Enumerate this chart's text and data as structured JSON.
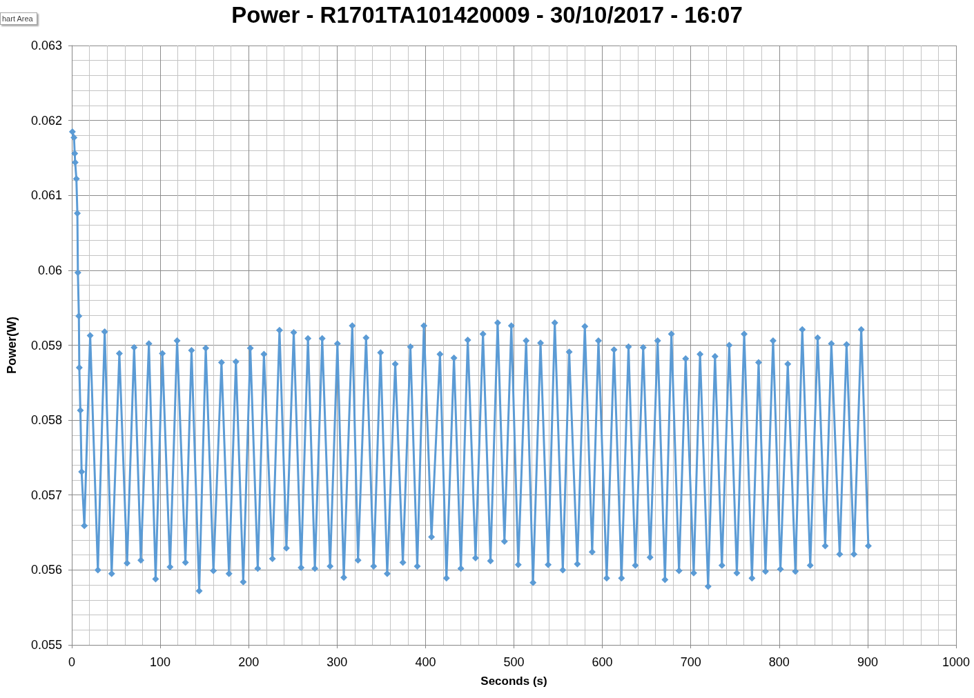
{
  "chart_data": {
    "type": "line",
    "title": "Power - R1701TA101420009 - 30/10/2017 - 16:07",
    "xlabel": "Seconds (s)",
    "ylabel": "Power(W)",
    "annotations": [
      "hart Area"
    ],
    "x": [
      0.7,
      2.5,
      3.3,
      3.8,
      5.2,
      6.3,
      6.9,
      8.0,
      8.5,
      9.7,
      11.1,
      14.2,
      20.8,
      29.5,
      37.2,
      45.1,
      53.8,
      62.5,
      70.5,
      78.1,
      87.2,
      94.8,
      102.4,
      111.1,
      119.1,
      128.5,
      135.4,
      144.1,
      151.5,
      160.2,
      169.3,
      177.8,
      185.6,
      193.9,
      201.9,
      210.3,
      217.3,
      226.9,
      234.9,
      242.7,
      251.0,
      259.3,
      267.1,
      274.9,
      283.2,
      292.1,
      300.4,
      307.6,
      317.2,
      323.7,
      332.8,
      341.4,
      349.2,
      356.7,
      365.8,
      374.4,
      382.9,
      390.7,
      398.2,
      406.8,
      416.4,
      423.7,
      432.2,
      440.0,
      447.8,
      456.6,
      465.0,
      473.5,
      481.6,
      489.3,
      497.1,
      504.9,
      513.8,
      521.6,
      530.1,
      538.7,
      546.2,
      555.3,
      562.5,
      571.7,
      580.2,
      588.5,
      595.6,
      604.9,
      613.2,
      621.7,
      629.6,
      637.3,
      646.2,
      654.0,
      662.5,
      670.8,
      678.1,
      686.7,
      694.2,
      703.3,
      710.5,
      719.6,
      727.4,
      735.2,
      743.5,
      752.1,
      760.4,
      769.2,
      776.7,
      784.5,
      793.1,
      801.4,
      809.7,
      818.3,
      826.1,
      835.1,
      843.5,
      852.0,
      859.0,
      868.4,
      876.2,
      884.5,
      892.8,
      900.8
    ],
    "values": [
      0.06185,
      0.06177,
      0.06156,
      0.06144,
      0.06122,
      0.06076,
      0.05997,
      0.05939,
      0.0587,
      0.05813,
      0.05731,
      0.05659,
      0.05913,
      0.056,
      0.05918,
      0.05595,
      0.05889,
      0.05609,
      0.05897,
      0.05613,
      0.05902,
      0.05588,
      0.05889,
      0.05604,
      0.05906,
      0.0561,
      0.05893,
      0.05572,
      0.05896,
      0.05599,
      0.05877,
      0.05595,
      0.05878,
      0.05584,
      0.05896,
      0.05602,
      0.05888,
      0.05615,
      0.0592,
      0.05629,
      0.05917,
      0.05603,
      0.05909,
      0.05602,
      0.05909,
      0.05605,
      0.05902,
      0.0559,
      0.05926,
      0.05613,
      0.0591,
      0.05605,
      0.0589,
      0.05595,
      0.05875,
      0.0561,
      0.05898,
      0.05605,
      0.05926,
      0.05644,
      0.05888,
      0.05589,
      0.05883,
      0.05602,
      0.05907,
      0.05616,
      0.05915,
      0.05612,
      0.0593,
      0.05638,
      0.05926,
      0.05607,
      0.05906,
      0.05583,
      0.05903,
      0.05607,
      0.0593,
      0.056,
      0.05891,
      0.05608,
      0.05925,
      0.05624,
      0.05906,
      0.05589,
      0.05894,
      0.05589,
      0.05898,
      0.05606,
      0.05897,
      0.05617,
      0.05906,
      0.05587,
      0.05915,
      0.05599,
      0.05882,
      0.05596,
      0.05888,
      0.05578,
      0.05885,
      0.05606,
      0.059,
      0.05596,
      0.05915,
      0.05589,
      0.05877,
      0.05598,
      0.05906,
      0.05601,
      0.05875,
      0.05598,
      0.05921,
      0.05606,
      0.0591,
      0.05632,
      0.05902,
      0.05621,
      0.05901,
      0.05621,
      0.05921,
      0.05632
    ],
    "color": "#5b9bd5",
    "marker": "diamond",
    "line_style": "solid",
    "grid": true,
    "xlim": [
      0,
      1000
    ],
    "xticks": [
      0,
      100,
      200,
      300,
      400,
      500,
      600,
      700,
      800,
      900,
      1000
    ],
    "ylim": [
      0.055,
      0.063
    ],
    "yticks": [
      0.055,
      0.056,
      0.057,
      0.058,
      0.059,
      0.06,
      0.061,
      0.062,
      0.063
    ]
  }
}
